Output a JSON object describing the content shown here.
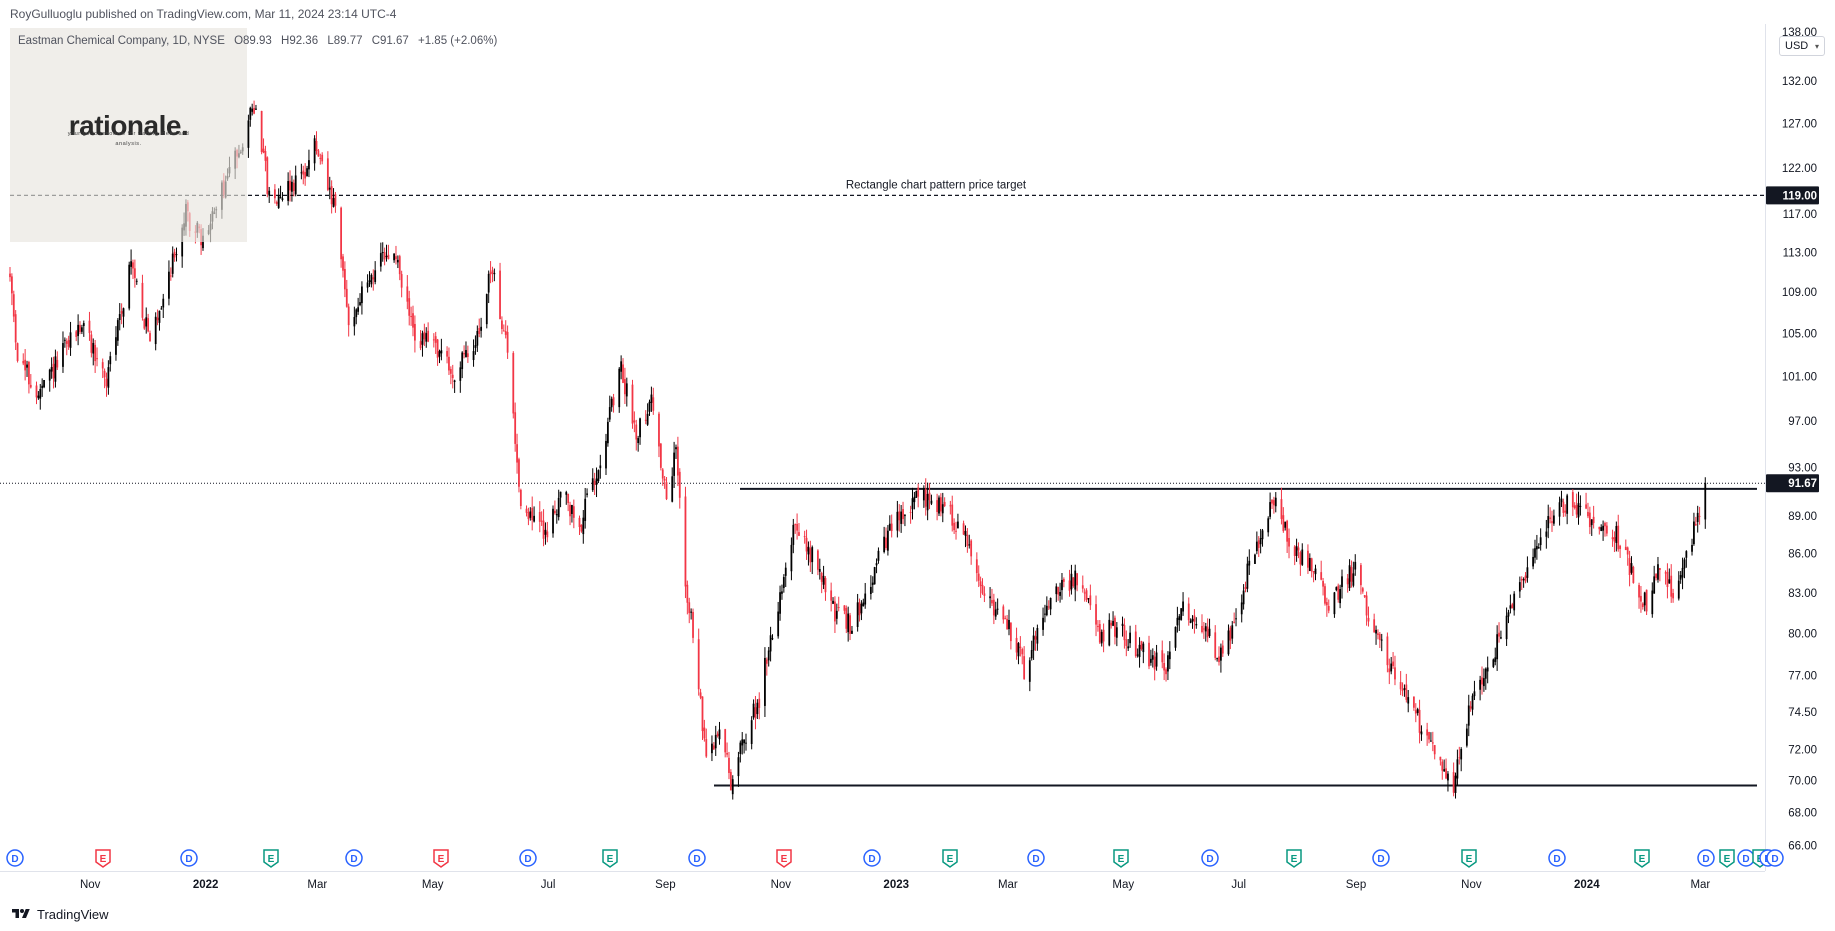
{
  "header": {
    "published_by": "RoyGulluoglu published on TradingView.com, Mar 11, 2024 23:14 UTC-4",
    "symbol": "Eastman Chemical Company, 1D, NYSE",
    "ohlc": {
      "open": "O89.93",
      "high": "H92.36",
      "low": "L89.77",
      "close": "C91.67",
      "change": "+1.85 (+2.06%)"
    }
  },
  "watermark": {
    "brand": "rationale.",
    "tagline": "your go-to resource for trading ideas and analysis."
  },
  "currency": {
    "label": "USD",
    "caret_icon": "chevron-down-icon"
  },
  "footer": {
    "brand": "TradingView",
    "logo_icon": "tradingview-logo-icon"
  },
  "colors": {
    "up": "#000000",
    "down": "#f23645",
    "dividend": "#2962ff",
    "earnings_red": "#f23645",
    "earnings_green": "#089981"
  },
  "chart_data": {
    "type": "candlestick",
    "interval": "1D",
    "ylim": [
      64.5,
      138.5
    ],
    "y_scale": "log",
    "y_ticks": [
      "66.00",
      "68.00",
      "70.00",
      "72.00",
      "74.50",
      "77.00",
      "80.00",
      "83.00",
      "86.00",
      "89.00",
      "93.00",
      "97.00",
      "101.00",
      "105.00",
      "109.00",
      "113.00",
      "117.00",
      "122.00",
      "127.00",
      "132.00",
      "138.00"
    ],
    "x_labels": [
      {
        "label": "Nov",
        "bold": false
      },
      {
        "label": "2022",
        "bold": true
      },
      {
        "label": "Mar",
        "bold": false
      },
      {
        "label": "May",
        "bold": false
      },
      {
        "label": "Jul",
        "bold": false
      },
      {
        "label": "Sep",
        "bold": false
      },
      {
        "label": "Nov",
        "bold": false
      },
      {
        "label": "2023",
        "bold": true
      },
      {
        "label": "Mar",
        "bold": false
      },
      {
        "label": "May",
        "bold": false
      },
      {
        "label": "Jul",
        "bold": false
      },
      {
        "label": "Sep",
        "bold": false
      },
      {
        "label": "Nov",
        "bold": false
      },
      {
        "label": "2024",
        "bold": true
      },
      {
        "label": "Mar",
        "bold": false
      }
    ],
    "levels": [
      {
        "name": "target",
        "price": 119.0,
        "label": "119.00",
        "style": "dashed",
        "annotation": "Rectangle chart pattern price target"
      },
      {
        "name": "resistance",
        "price": 91.2,
        "style": "solid"
      },
      {
        "name": "support",
        "price": 69.7,
        "style": "solid"
      }
    ],
    "last_price": {
      "price": 91.67,
      "label": "91.67"
    },
    "events": [
      "D",
      "E",
      "D",
      "E",
      "D",
      "E",
      "D",
      "E",
      "D",
      "E",
      "D",
      "E",
      "D",
      "E",
      "D",
      "E",
      "D",
      "E",
      "D",
      "E",
      "D",
      "E",
      "D",
      "E",
      "D",
      "D"
    ],
    "price_path": [
      {
        "date": "2021-09-27",
        "price": 110.5
      },
      {
        "date": "2021-10-01",
        "price": 103.0
      },
      {
        "date": "2021-10-12",
        "price": 99.0
      },
      {
        "date": "2021-10-26",
        "price": 103.5
      },
      {
        "date": "2021-11-04",
        "price": 106.0
      },
      {
        "date": "2021-11-17",
        "price": 100.5
      },
      {
        "date": "2021-11-30",
        "price": 112.0
      },
      {
        "date": "2021-12-10",
        "price": 104.0
      },
      {
        "date": "2021-12-29",
        "price": 117.0
      },
      {
        "date": "2022-01-07",
        "price": 114.0
      },
      {
        "date": "2022-01-21",
        "price": 121.5
      },
      {
        "date": "2022-02-04",
        "price": 129.5
      },
      {
        "date": "2022-02-11",
        "price": 118.5
      },
      {
        "date": "2022-02-28",
        "price": 121.0
      },
      {
        "date": "2022-03-07",
        "price": 124.5
      },
      {
        "date": "2022-03-18",
        "price": 117.0
      },
      {
        "date": "2022-03-25",
        "price": 106.0
      },
      {
        "date": "2022-04-08",
        "price": 111.5
      },
      {
        "date": "2022-04-18",
        "price": 113.0
      },
      {
        "date": "2022-04-29",
        "price": 104.5
      },
      {
        "date": "2022-05-10",
        "price": 104.0
      },
      {
        "date": "2022-05-19",
        "price": 101.0
      },
      {
        "date": "2022-05-31",
        "price": 104.0
      },
      {
        "date": "2022-06-09",
        "price": 111.5
      },
      {
        "date": "2022-06-17",
        "price": 103.0
      },
      {
        "date": "2022-06-24",
        "price": 90.0
      },
      {
        "date": "2022-07-08",
        "price": 87.5
      },
      {
        "date": "2022-07-15",
        "price": 91.0
      },
      {
        "date": "2022-07-25",
        "price": 88.0
      },
      {
        "date": "2022-08-05",
        "price": 94.0
      },
      {
        "date": "2022-08-16",
        "price": 101.5
      },
      {
        "date": "2022-08-24",
        "price": 96.0
      },
      {
        "date": "2022-09-01",
        "price": 99.0
      },
      {
        "date": "2022-09-09",
        "price": 90.0
      },
      {
        "date": "2022-09-14",
        "price": 94.5
      },
      {
        "date": "2022-09-19",
        "price": 84.0
      },
      {
        "date": "2022-09-23",
        "price": 80.0
      },
      {
        "date": "2022-09-30",
        "price": 71.0
      },
      {
        "date": "2022-10-07",
        "price": 73.5
      },
      {
        "date": "2022-10-13",
        "price": 70.0
      },
      {
        "date": "2022-10-21",
        "price": 73.0
      },
      {
        "date": "2022-10-28",
        "price": 75.5
      },
      {
        "date": "2022-11-08",
        "price": 83.0
      },
      {
        "date": "2022-11-15",
        "price": 88.0
      },
      {
        "date": "2022-11-28",
        "price": 85.0
      },
      {
        "date": "2022-12-07",
        "price": 81.5
      },
      {
        "date": "2022-12-16",
        "price": 80.5
      },
      {
        "date": "2023-01-06",
        "price": 88.0
      },
      {
        "date": "2023-01-20",
        "price": 90.5
      },
      {
        "date": "2023-02-01",
        "price": 90.0
      },
      {
        "date": "2023-02-14",
        "price": 87.5
      },
      {
        "date": "2023-02-24",
        "price": 83.0
      },
      {
        "date": "2023-03-10",
        "price": 80.0
      },
      {
        "date": "2023-03-17",
        "price": 77.5
      },
      {
        "date": "2023-03-31",
        "price": 83.0
      },
      {
        "date": "2023-04-14",
        "price": 84.0
      },
      {
        "date": "2023-04-25",
        "price": 80.0
      },
      {
        "date": "2023-05-05",
        "price": 80.5
      },
      {
        "date": "2023-05-15",
        "price": 79.0
      },
      {
        "date": "2023-05-31",
        "price": 77.5
      },
      {
        "date": "2023-06-09",
        "price": 82.0
      },
      {
        "date": "2023-06-20",
        "price": 80.5
      },
      {
        "date": "2023-06-30",
        "price": 78.0
      },
      {
        "date": "2023-07-12",
        "price": 84.0
      },
      {
        "date": "2023-07-21",
        "price": 88.0
      },
      {
        "date": "2023-07-28",
        "price": 90.5
      },
      {
        "date": "2023-08-04",
        "price": 87.0
      },
      {
        "date": "2023-08-15",
        "price": 85.0
      },
      {
        "date": "2023-08-25",
        "price": 82.0
      },
      {
        "date": "2023-09-08",
        "price": 85.0
      },
      {
        "date": "2023-09-18",
        "price": 80.0
      },
      {
        "date": "2023-09-29",
        "price": 77.0
      },
      {
        "date": "2023-10-11",
        "price": 74.0
      },
      {
        "date": "2023-10-23",
        "price": 71.5
      },
      {
        "date": "2023-10-30",
        "price": 69.5
      },
      {
        "date": "2023-11-06",
        "price": 74.0
      },
      {
        "date": "2023-11-17",
        "price": 77.5
      },
      {
        "date": "2023-11-30",
        "price": 82.0
      },
      {
        "date": "2023-12-12",
        "price": 86.0
      },
      {
        "date": "2023-12-22",
        "price": 89.5
      },
      {
        "date": "2024-01-02",
        "price": 90.0
      },
      {
        "date": "2024-01-12",
        "price": 88.5
      },
      {
        "date": "2024-01-24",
        "price": 87.5
      },
      {
        "date": "2024-02-01",
        "price": 84.5
      },
      {
        "date": "2024-02-09",
        "price": 82.0
      },
      {
        "date": "2024-02-16",
        "price": 85.0
      },
      {
        "date": "2024-02-23",
        "price": 83.0
      },
      {
        "date": "2024-03-04",
        "price": 87.5
      },
      {
        "date": "2024-03-08",
        "price": 89.8
      },
      {
        "date": "2024-03-11",
        "price": 91.67
      }
    ]
  }
}
